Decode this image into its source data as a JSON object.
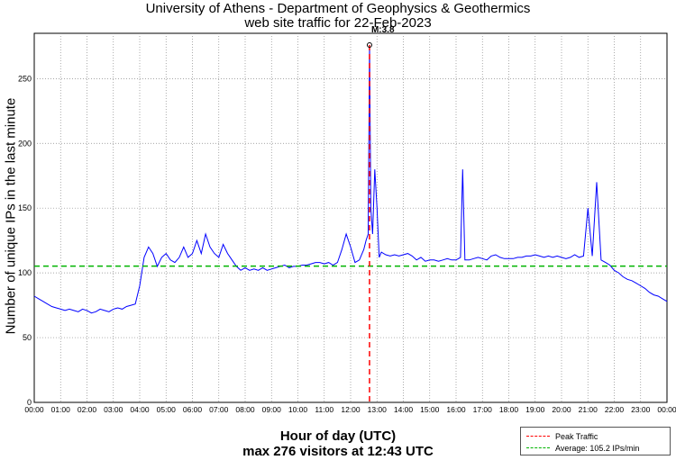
{
  "title": {
    "line1": "University of Athens - Department of Geophysics & Geothermics",
    "line2": "web site traffic for 22-Feb-2023"
  },
  "axis": {
    "ylabel": "Number of unique IPs in the last minute",
    "xlabel": "Hour of day (UTC)",
    "summary": "max 276 visitors at 12:43 UTC"
  },
  "legend": {
    "peak_label": "Peak Traffic",
    "average_label": "Average: 105.2 IPs/min"
  },
  "annotation": {
    "marker_label": "M:3.8"
  },
  "colors": {
    "traffic": "#0000ff",
    "peak": "#ff0000",
    "average": "#00b400",
    "grid": "#888888"
  },
  "chart_data": {
    "type": "line",
    "ylim": [
      0,
      285
    ],
    "xlim": [
      0,
      1440
    ],
    "yticks": [
      0,
      50,
      100,
      150,
      200,
      250
    ],
    "xtick_labels": [
      "00:00",
      "01:00",
      "02:00",
      "03:00",
      "04:00",
      "05:00",
      "06:00",
      "07:00",
      "08:00",
      "09:00",
      "10:00",
      "11:00",
      "12:00",
      "13:00",
      "14:00",
      "15:00",
      "16:00",
      "17:00",
      "18:00",
      "19:00",
      "20:00",
      "21:00",
      "22:00",
      "23:00",
      "00:00"
    ],
    "grid": true,
    "average": 105.2,
    "peak": {
      "minute": 763,
      "value": 276,
      "time": "12:43"
    },
    "series": [
      {
        "values": [
          [
            0,
            82
          ],
          [
            10,
            80
          ],
          [
            20,
            78
          ],
          [
            30,
            76
          ],
          [
            40,
            74
          ],
          [
            50,
            73
          ],
          [
            60,
            72
          ],
          [
            70,
            71
          ],
          [
            80,
            72
          ],
          [
            90,
            71
          ],
          [
            100,
            70
          ],
          [
            110,
            72
          ],
          [
            120,
            71
          ],
          [
            130,
            69
          ],
          [
            140,
            70
          ],
          [
            150,
            72
          ],
          [
            160,
            71
          ],
          [
            170,
            70
          ],
          [
            180,
            72
          ],
          [
            190,
            73
          ],
          [
            200,
            72
          ],
          [
            210,
            74
          ],
          [
            220,
            75
          ],
          [
            230,
            76
          ],
          [
            240,
            90
          ],
          [
            250,
            112
          ],
          [
            260,
            120
          ],
          [
            270,
            115
          ],
          [
            280,
            105
          ],
          [
            290,
            112
          ],
          [
            300,
            115
          ],
          [
            310,
            110
          ],
          [
            320,
            108
          ],
          [
            330,
            112
          ],
          [
            340,
            120
          ],
          [
            350,
            112
          ],
          [
            360,
            115
          ],
          [
            370,
            125
          ],
          [
            380,
            115
          ],
          [
            390,
            130
          ],
          [
            400,
            120
          ],
          [
            410,
            115
          ],
          [
            420,
            112
          ],
          [
            430,
            122
          ],
          [
            440,
            115
          ],
          [
            450,
            110
          ],
          [
            460,
            105
          ],
          [
            470,
            102
          ],
          [
            480,
            104
          ],
          [
            490,
            102
          ],
          [
            500,
            103
          ],
          [
            510,
            102
          ],
          [
            520,
            104
          ],
          [
            530,
            102
          ],
          [
            540,
            103
          ],
          [
            550,
            104
          ],
          [
            560,
            105
          ],
          [
            570,
            106
          ],
          [
            580,
            104
          ],
          [
            590,
            105
          ],
          [
            600,
            105
          ],
          [
            610,
            106
          ],
          [
            620,
            106
          ],
          [
            630,
            107
          ],
          [
            640,
            108
          ],
          [
            650,
            108
          ],
          [
            660,
            107
          ],
          [
            670,
            108
          ],
          [
            680,
            106
          ],
          [
            690,
            108
          ],
          [
            700,
            118
          ],
          [
            710,
            130
          ],
          [
            720,
            120
          ],
          [
            730,
            108
          ],
          [
            740,
            110
          ],
          [
            750,
            118
          ],
          [
            755,
            125
          ],
          [
            760,
            130
          ],
          [
            763,
            276
          ],
          [
            766,
            150
          ],
          [
            770,
            130
          ],
          [
            775,
            180
          ],
          [
            780,
            150
          ],
          [
            785,
            112
          ],
          [
            790,
            116
          ],
          [
            800,
            114
          ],
          [
            810,
            113
          ],
          [
            820,
            114
          ],
          [
            830,
            113
          ],
          [
            840,
            114
          ],
          [
            850,
            115
          ],
          [
            860,
            113
          ],
          [
            870,
            110
          ],
          [
            880,
            112
          ],
          [
            890,
            109
          ],
          [
            900,
            110
          ],
          [
            910,
            110
          ],
          [
            920,
            109
          ],
          [
            930,
            110
          ],
          [
            940,
            111
          ],
          [
            950,
            110
          ],
          [
            960,
            110
          ],
          [
            970,
            112
          ],
          [
            975,
            180
          ],
          [
            980,
            110
          ],
          [
            990,
            110
          ],
          [
            1000,
            111
          ],
          [
            1010,
            112
          ],
          [
            1020,
            111
          ],
          [
            1030,
            110
          ],
          [
            1040,
            113
          ],
          [
            1050,
            114
          ],
          [
            1060,
            112
          ],
          [
            1070,
            111
          ],
          [
            1080,
            111
          ],
          [
            1090,
            111
          ],
          [
            1100,
            112
          ],
          [
            1110,
            112
          ],
          [
            1120,
            113
          ],
          [
            1130,
            113
          ],
          [
            1140,
            114
          ],
          [
            1150,
            113
          ],
          [
            1160,
            112
          ],
          [
            1170,
            113
          ],
          [
            1180,
            112
          ],
          [
            1190,
            113
          ],
          [
            1200,
            112
          ],
          [
            1210,
            111
          ],
          [
            1220,
            112
          ],
          [
            1230,
            114
          ],
          [
            1240,
            112
          ],
          [
            1250,
            113
          ],
          [
            1260,
            150
          ],
          [
            1270,
            113
          ],
          [
            1280,
            170
          ],
          [
            1290,
            110
          ],
          [
            1300,
            108
          ],
          [
            1310,
            106
          ],
          [
            1320,
            102
          ],
          [
            1330,
            100
          ],
          [
            1340,
            97
          ],
          [
            1350,
            95
          ],
          [
            1360,
            94
          ],
          [
            1370,
            92
          ],
          [
            1380,
            90
          ],
          [
            1390,
            88
          ],
          [
            1400,
            85
          ],
          [
            1410,
            83
          ],
          [
            1420,
            82
          ],
          [
            1430,
            80
          ],
          [
            1440,
            78
          ]
        ]
      }
    ]
  }
}
